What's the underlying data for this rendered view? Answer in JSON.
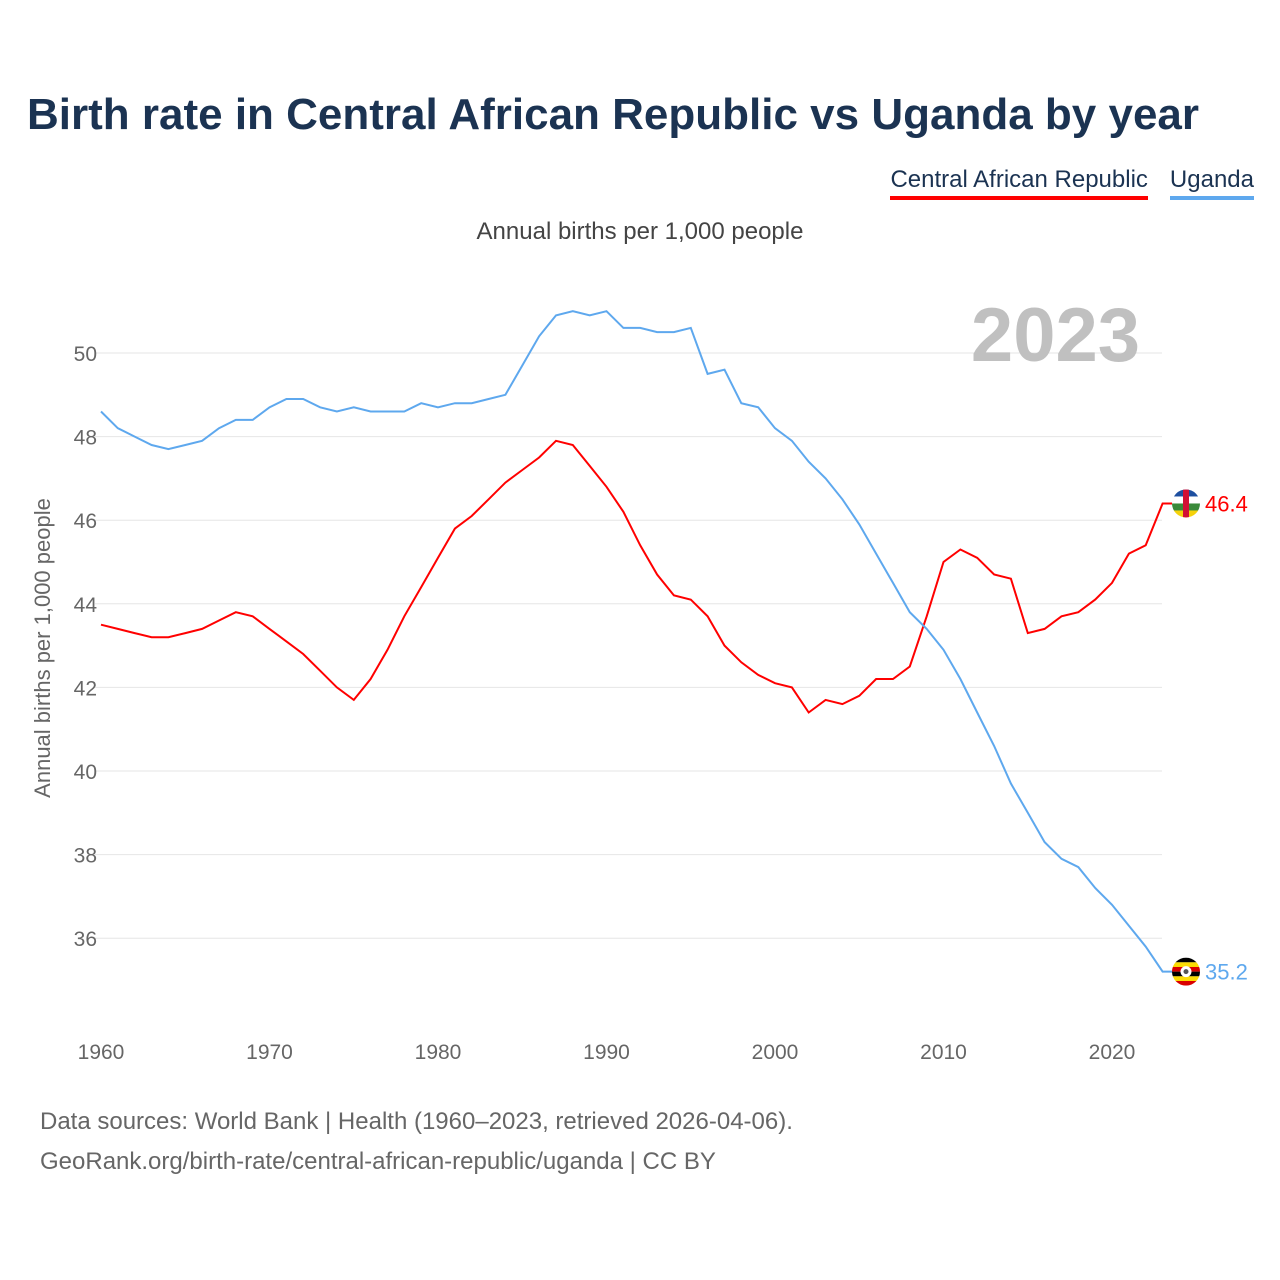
{
  "title": "Birth rate in Central African Republic vs Uganda by year",
  "subtitle": "Annual births per 1,000 people",
  "source_line1": "Data sources: World Bank | Health (1960–2023, retrieved 2026-04-06).",
  "source_line2": "GeoRank.org/birth-rate/central-african-republic/uganda | CC BY",
  "chart_data": {
    "type": "line",
    "title": "Birth rate in Central African Republic vs Uganda by year",
    "ylabel": "Annual births per 1,000 people",
    "xlabel": "",
    "year_label": "2023",
    "xlim": [
      1960,
      2023
    ],
    "ylim": [
      35,
      51.5
    ],
    "xticks": [
      1960,
      1970,
      1980,
      1990,
      2000,
      2010,
      2020
    ],
    "yticks": [
      36,
      38,
      40,
      42,
      44,
      46,
      48,
      50
    ],
    "legend_position": "top-right",
    "x_start": 1960,
    "series": [
      {
        "name": "Central African Republic",
        "color": "#ff0000",
        "end_label": "46.4",
        "values": [
          43.5,
          43.4,
          43.3,
          43.2,
          43.2,
          43.3,
          43.4,
          43.6,
          43.8,
          43.7,
          43.4,
          43.1,
          42.8,
          42.4,
          42.0,
          41.7,
          42.2,
          42.9,
          43.7,
          44.4,
          45.1,
          45.8,
          46.1,
          46.5,
          46.9,
          47.2,
          47.5,
          47.9,
          47.8,
          47.3,
          46.8,
          46.2,
          45.4,
          44.7,
          44.2,
          44.1,
          43.7,
          43.0,
          42.6,
          42.3,
          42.1,
          42.0,
          41.4,
          41.7,
          41.6,
          41.8,
          42.2,
          42.2,
          42.5,
          43.7,
          45.0,
          45.3,
          45.1,
          44.7,
          44.6,
          43.3,
          43.4,
          43.7,
          43.8,
          44.1,
          44.5,
          45.2,
          45.4,
          46.4
        ]
      },
      {
        "name": "Uganda",
        "color": "#5ea8ee",
        "end_label": "35.2",
        "values": [
          48.6,
          48.2,
          48.0,
          47.8,
          47.7,
          47.8,
          47.9,
          48.2,
          48.4,
          48.4,
          48.7,
          48.9,
          48.9,
          48.7,
          48.6,
          48.7,
          48.6,
          48.6,
          48.6,
          48.8,
          48.7,
          48.8,
          48.8,
          48.9,
          49.0,
          49.7,
          50.4,
          50.9,
          51.0,
          50.9,
          51.0,
          50.6,
          50.6,
          50.5,
          50.5,
          50.6,
          49.5,
          49.6,
          48.8,
          48.7,
          48.2,
          47.9,
          47.4,
          47.0,
          46.5,
          45.9,
          45.2,
          44.5,
          43.8,
          43.4,
          42.9,
          42.2,
          41.4,
          40.6,
          39.7,
          39.0,
          38.3,
          37.9,
          37.7,
          37.2,
          36.8,
          36.3,
          35.8,
          35.2
        ]
      }
    ]
  }
}
